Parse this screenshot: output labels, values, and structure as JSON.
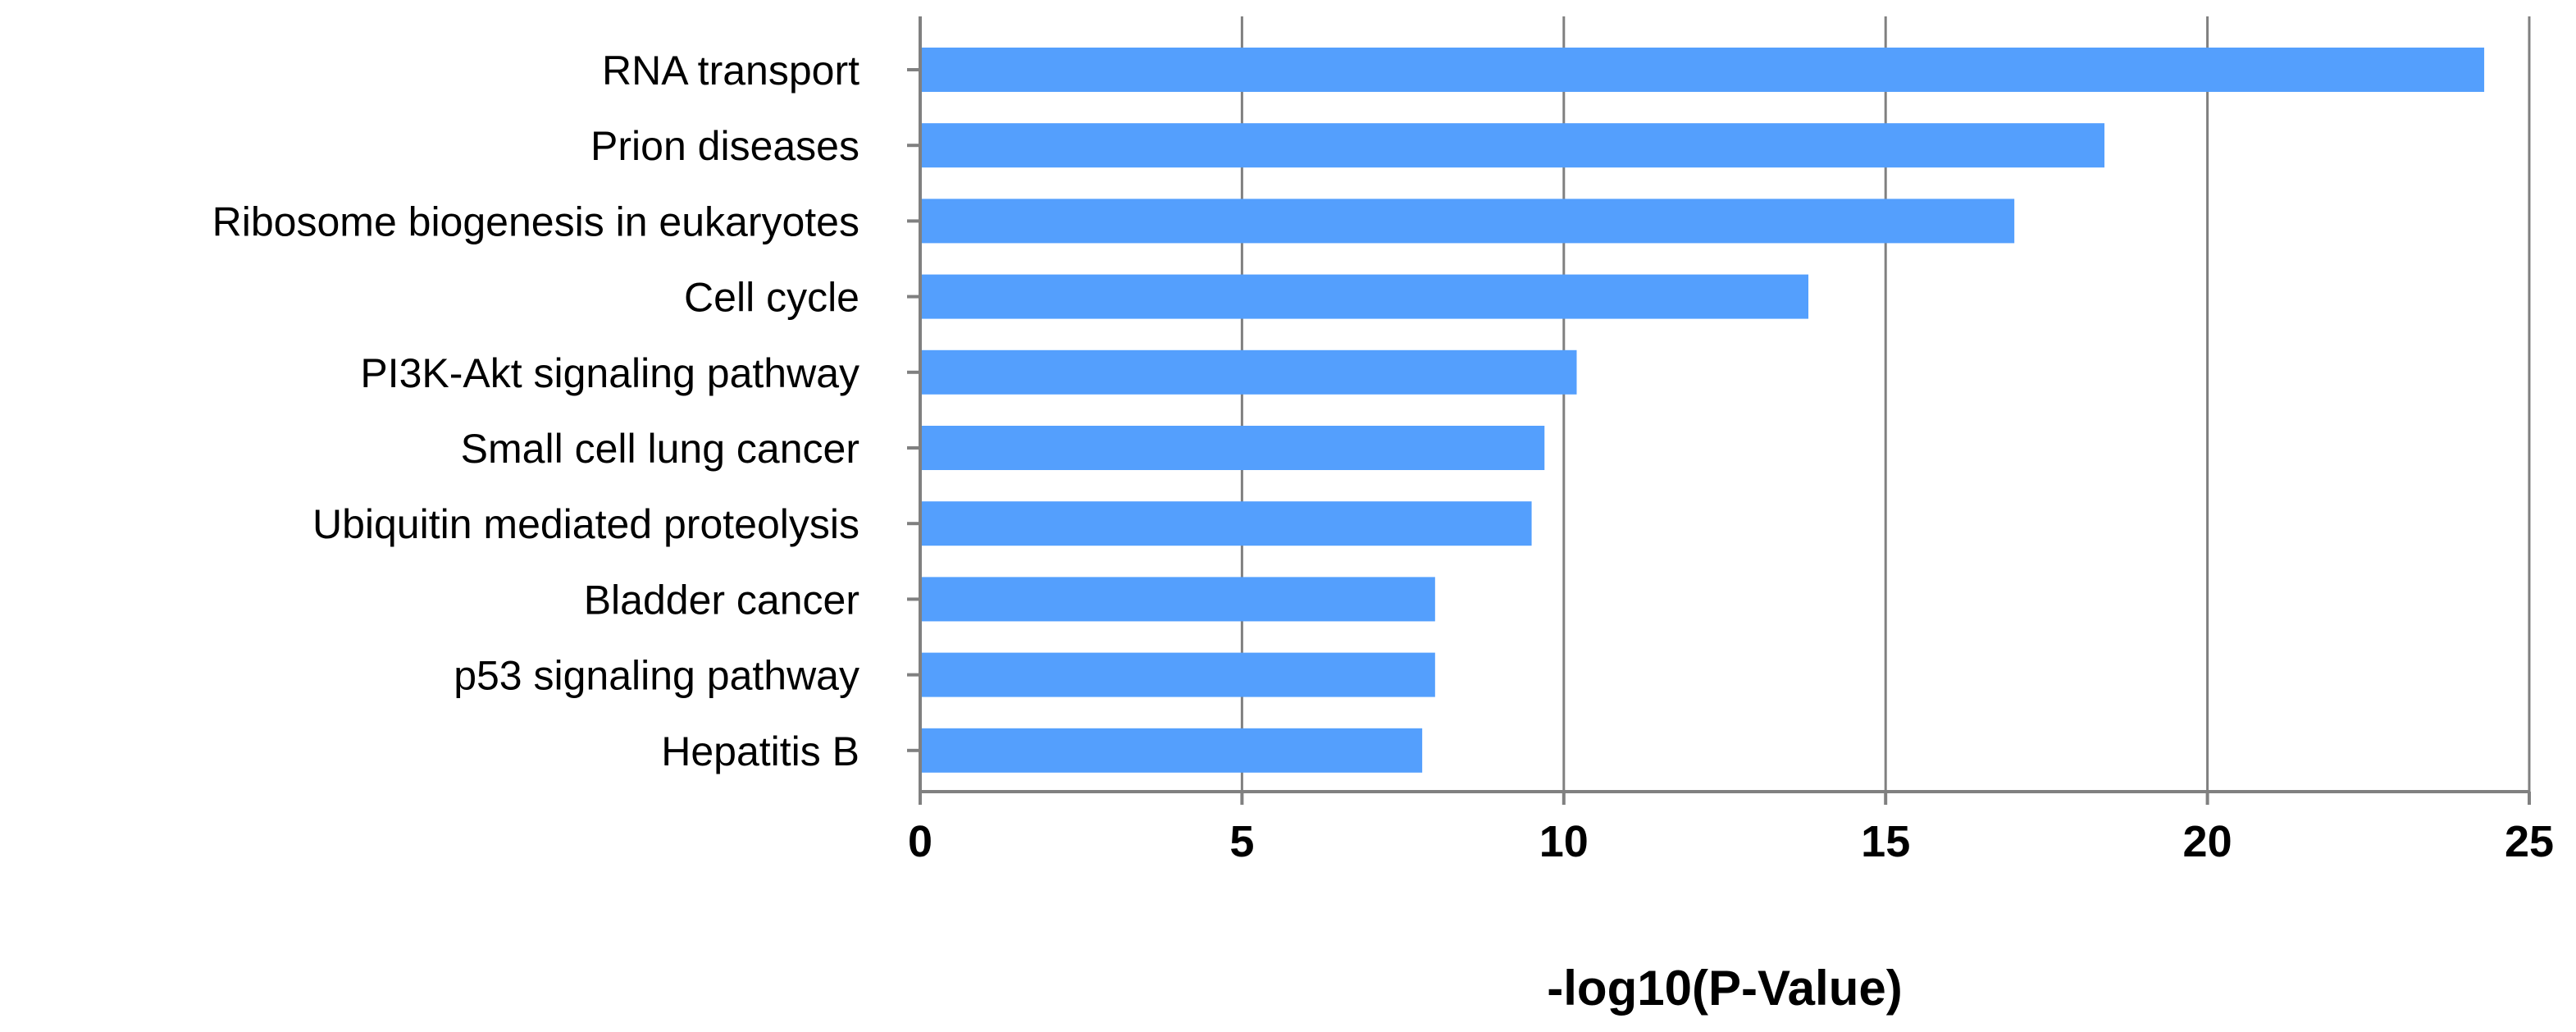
{
  "chart_data": {
    "type": "bar",
    "orientation": "horizontal",
    "title": "",
    "xlabel": "-log10(P-Value)",
    "ylabel": "",
    "categories": [
      "RNA transport",
      "Prion diseases",
      "Ribosome biogenesis in eukaryotes",
      "Cell cycle",
      "PI3K-Akt signaling pathway",
      "Small cell lung cancer",
      "Ubiquitin mediated proteolysis",
      "Bladder cancer",
      "p53 signaling pathway",
      "Hepatitis B"
    ],
    "values": [
      24.3,
      18.4,
      17.0,
      13.8,
      10.2,
      9.7,
      9.5,
      8.0,
      8.0,
      7.8
    ],
    "xlim": [
      0,
      25
    ],
    "xticks": [
      "0",
      "5",
      "10",
      "15",
      "20",
      "25"
    ],
    "grid": "vertical",
    "legend": "none",
    "colors": {
      "bar": "#549FFD",
      "axis": "#808080",
      "grid": "#808080",
      "text": "#000000"
    }
  }
}
